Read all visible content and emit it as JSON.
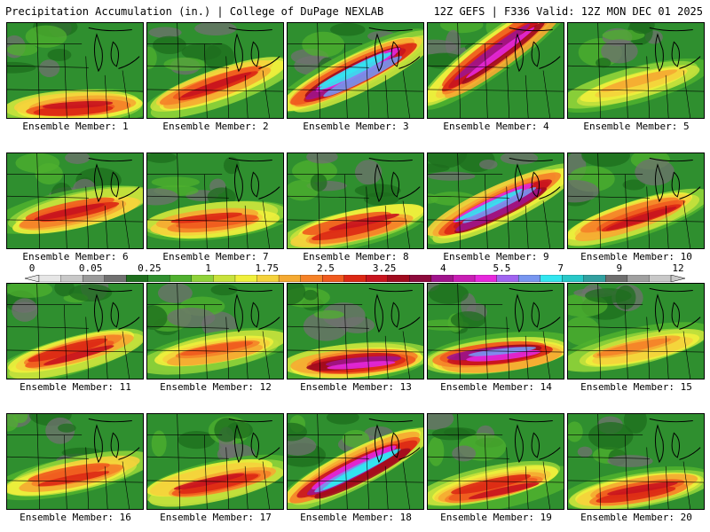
{
  "header": {
    "title_left": "Precipitation Accumulation (in.) | College of DuPage NEXLAB",
    "title_right": "12Z GEFS | F336 Valid: 12Z MON DEC 01 2025"
  },
  "legend": {
    "ticks": [
      {
        "label": "0",
        "value": 0
      },
      {
        "label": "0.05",
        "value": 0.05
      },
      {
        "label": "0.25",
        "value": 0.25
      },
      {
        "label": "1",
        "value": 1
      },
      {
        "label": "1.75",
        "value": 1.75
      },
      {
        "label": "2.5",
        "value": 2.5
      },
      {
        "label": "3.25",
        "value": 3.25
      },
      {
        "label": "4",
        "value": 4
      },
      {
        "label": "5.5",
        "value": 5.5
      },
      {
        "label": "7",
        "value": 7
      },
      {
        "label": "9",
        "value": 9
      },
      {
        "label": "12",
        "value": 12
      }
    ],
    "colors": [
      "#e6e6e6",
      "#c8c8c8",
      "#9a9a9a",
      "#707070",
      "#1e6e1e",
      "#2f8f2f",
      "#4fb02f",
      "#8fd23a",
      "#c8e23c",
      "#f0f03c",
      "#f5d23c",
      "#f5aa32",
      "#f58228",
      "#f05a1e",
      "#dc2814",
      "#c8141e",
      "#a00a1e",
      "#8c0a3c",
      "#a0148c",
      "#c81eb4",
      "#e628dc",
      "#a064f0",
      "#7896f0",
      "#32e6f0",
      "#28c8c8",
      "#32a0a0",
      "#6e6e6e",
      "#a0a0a0",
      "#c8c8c8"
    ]
  },
  "panels": [
    {
      "label": "Ensemble Member: 1",
      "intensity": 0.6,
      "band_y": 0.85,
      "band_slope": 0.0
    },
    {
      "label": "Ensemble Member: 2",
      "intensity": 0.65,
      "band_y": 0.85,
      "band_slope": 0.55
    },
    {
      "label": "Ensemble Member: 3",
      "intensity": 1.0,
      "band_y": 0.85,
      "band_slope": 0.85
    },
    {
      "label": "Ensemble Member: 4",
      "intensity": 0.8,
      "band_y": 0.8,
      "band_slope": 1.3
    },
    {
      "label": "Ensemble Member: 5",
      "intensity": 0.35,
      "band_y": 0.75,
      "band_slope": 0.4
    },
    {
      "label": "Ensemble Member: 6",
      "intensity": 0.6,
      "band_y": 0.7,
      "band_slope": 0.3
    },
    {
      "label": "Ensemble Member: 7",
      "intensity": 0.55,
      "band_y": 0.7,
      "band_slope": 0.1
    },
    {
      "label": "Ensemble Member: 8",
      "intensity": 0.6,
      "band_y": 0.85,
      "band_slope": 0.3
    },
    {
      "label": "Ensemble Member: 9",
      "intensity": 0.95,
      "band_y": 0.85,
      "band_slope": 0.8
    },
    {
      "label": "Ensemble Member: 10",
      "intensity": 0.6,
      "band_y": 0.85,
      "band_slope": 0.5
    },
    {
      "label": "Ensemble Member: 11",
      "intensity": 0.6,
      "band_y": 0.85,
      "band_slope": 0.4
    },
    {
      "label": "Ensemble Member: 12",
      "intensity": 0.5,
      "band_y": 0.75,
      "band_slope": 0.2
    },
    {
      "label": "Ensemble Member: 13",
      "intensity": 0.8,
      "band_y": 0.8,
      "band_slope": 0.05
    },
    {
      "label": "Ensemble Member: 14",
      "intensity": 0.85,
      "band_y": 0.75,
      "band_slope": 0.1
    },
    {
      "label": "Ensemble Member: 15",
      "intensity": 0.45,
      "band_y": 0.75,
      "band_slope": 0.3
    },
    {
      "label": "Ensemble Member: 16",
      "intensity": 0.55,
      "band_y": 0.7,
      "band_slope": 0.25
    },
    {
      "label": "Ensemble Member: 17",
      "intensity": 0.6,
      "band_y": 0.8,
      "band_slope": 0.3
    },
    {
      "label": "Ensemble Member: 18",
      "intensity": 1.0,
      "band_y": 0.9,
      "band_slope": 0.85
    },
    {
      "label": "Ensemble Member: 19",
      "intensity": 0.6,
      "band_y": 0.85,
      "band_slope": 0.3
    },
    {
      "label": "Ensemble Member: 20",
      "intensity": 0.6,
      "band_y": 0.85,
      "band_slope": 0.2
    }
  ]
}
